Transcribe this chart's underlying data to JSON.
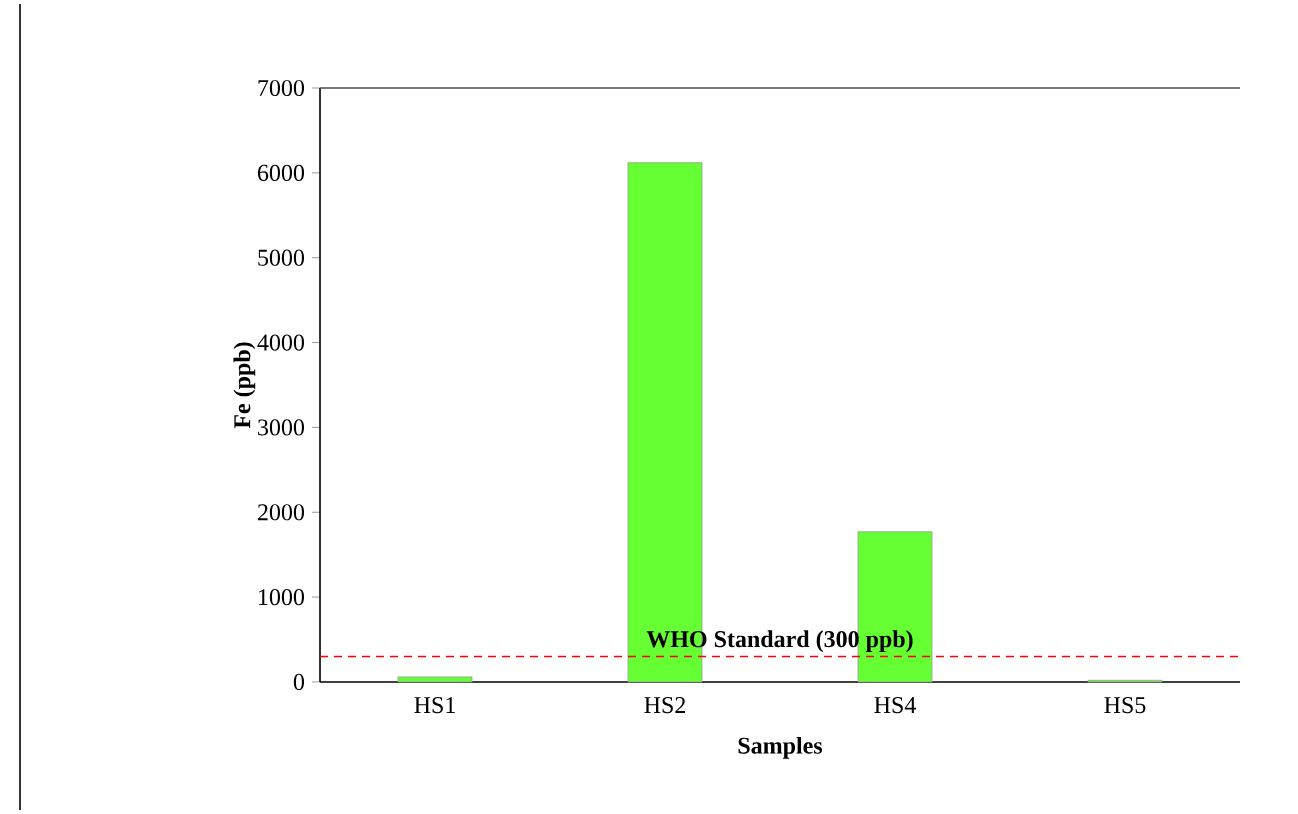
{
  "chart_data": {
    "type": "bar",
    "xlabel": "Samples",
    "ylabel": "Fe (ppb)",
    "categories": [
      "HS1",
      "HS2",
      "HS4",
      "HS5"
    ],
    "values": [
      60,
      6120,
      1770,
      20
    ],
    "color": "#66ff33",
    "ylim": [
      0,
      7000
    ],
    "yticks": [
      0,
      1000,
      2000,
      3000,
      4000,
      5000,
      6000,
      7000
    ],
    "ref_lines": [
      {
        "axis": "y",
        "value": 300,
        "label": "WHO Standard (300 ppb)",
        "color": "#ff0000",
        "line_style": "dashed"
      }
    ],
    "grid": false
  }
}
